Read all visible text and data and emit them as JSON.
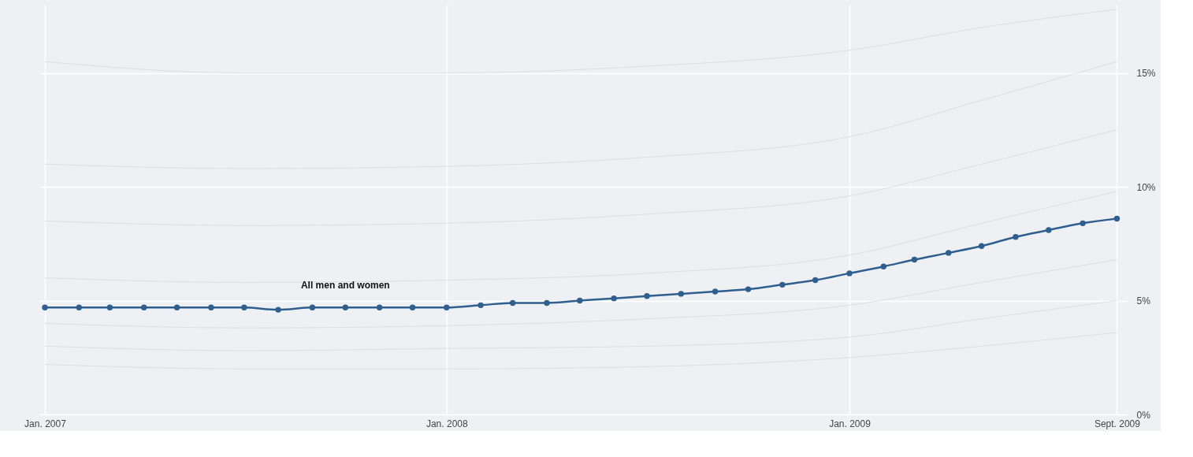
{
  "chart_data": {
    "type": "line",
    "x": [
      "2007-01",
      "2007-02",
      "2007-03",
      "2007-04",
      "2007-05",
      "2007-06",
      "2007-07",
      "2007-08",
      "2007-09",
      "2007-10",
      "2007-11",
      "2007-12",
      "2008-01",
      "2008-02",
      "2008-03",
      "2008-04",
      "2008-05",
      "2008-06",
      "2008-07",
      "2008-08",
      "2008-09",
      "2008-10",
      "2008-11",
      "2008-12",
      "2009-01",
      "2009-02",
      "2009-03",
      "2009-04",
      "2009-05",
      "2009-06",
      "2009-07",
      "2009-08",
      "2009-09"
    ],
    "series": [
      {
        "color": "#dcdfe2",
        "x": [
          "2007-01",
          "2007-07",
          "2008-01",
          "2008-07",
          "2009-01",
          "2009-05",
          "2009-09"
        ],
        "values": [
          2.2,
          2.0,
          2.0,
          2.1,
          2.5,
          3.0,
          3.6
        ],
        "marker": "none"
      },
      {
        "color": "#dcdfe2",
        "x": [
          "2007-01",
          "2007-07",
          "2008-01",
          "2008-07",
          "2009-01",
          "2009-05",
          "2009-09"
        ],
        "values": [
          3.0,
          2.8,
          2.9,
          3.0,
          3.4,
          4.2,
          5.0
        ],
        "marker": "none"
      },
      {
        "color": "#dcdfe2",
        "x": [
          "2007-01",
          "2007-07",
          "2008-01",
          "2008-07",
          "2009-01",
          "2009-05",
          "2009-09"
        ],
        "values": [
          4.0,
          3.8,
          3.9,
          4.2,
          4.8,
          5.8,
          6.8
        ],
        "marker": "none"
      },
      {
        "color": "#dcdfe2",
        "x": [
          "2007-01",
          "2007-07",
          "2008-01",
          "2008-07",
          "2009-01",
          "2009-05",
          "2009-09"
        ],
        "values": [
          6.0,
          5.8,
          5.9,
          6.2,
          7.0,
          8.4,
          9.8
        ],
        "marker": "none"
      },
      {
        "color": "#dcdfe2",
        "x": [
          "2007-01",
          "2007-07",
          "2008-01",
          "2008-07",
          "2009-01",
          "2009-05",
          "2009-09"
        ],
        "values": [
          8.5,
          8.3,
          8.4,
          8.8,
          9.6,
          11.0,
          12.5
        ],
        "marker": "none"
      },
      {
        "color": "#dcdfe2",
        "x": [
          "2007-01",
          "2007-07",
          "2008-01",
          "2008-07",
          "2009-01",
          "2009-05",
          "2009-09"
        ],
        "values": [
          11.0,
          10.8,
          10.9,
          11.3,
          12.2,
          13.8,
          15.5
        ],
        "marker": "none"
      },
      {
        "color": "#dcdfe2",
        "x": [
          "2007-01",
          "2007-07",
          "2008-01",
          "2008-07",
          "2009-01",
          "2009-05",
          "2009-09"
        ],
        "values": [
          15.5,
          15.0,
          15.0,
          15.3,
          16.0,
          17.0,
          17.8
        ],
        "marker": "none"
      },
      {
        "name": "All men and women",
        "color": "#2f5f8f",
        "marker": "circle",
        "values": [
          4.7,
          4.7,
          4.7,
          4.7,
          4.7,
          4.7,
          4.7,
          4.6,
          4.7,
          4.7,
          4.7,
          4.7,
          4.7,
          4.8,
          4.9,
          4.9,
          5.0,
          5.1,
          5.2,
          5.3,
          5.4,
          5.5,
          5.7,
          5.9,
          6.2,
          6.5,
          6.8,
          7.1,
          7.4,
          7.8,
          8.1,
          8.4,
          8.6
        ]
      }
    ],
    "xlim": [
      "2006-12-27",
      "2009-09-10"
    ],
    "xticks": [
      {
        "value": "2007-01",
        "label": "Jan. 2007"
      },
      {
        "value": "2008-01",
        "label": "Jan. 2008"
      },
      {
        "value": "2009-01",
        "label": "Jan. 2009"
      },
      {
        "value": "2009-09",
        "label": "Sept. 2009"
      }
    ],
    "ylim": [
      0,
      18
    ],
    "yticks": [
      {
        "value": 0,
        "label": "0%"
      },
      {
        "value": 5,
        "label": "5%"
      },
      {
        "value": 10,
        "label": "10%"
      },
      {
        "value": 15,
        "label": "15%"
      }
    ],
    "grid": true,
    "line_style": "solid"
  }
}
